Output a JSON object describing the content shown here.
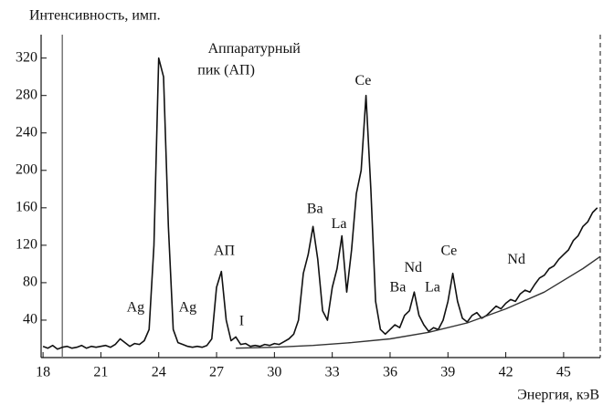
{
  "chart_data": {
    "type": "line",
    "y_label": "Интенсивность, имп.",
    "x_label": "Энергия, кэВ",
    "xlim": [
      17.9,
      46.9
    ],
    "ylim": [
      0,
      345
    ],
    "xticks": [
      18,
      21,
      24,
      27,
      30,
      33,
      36,
      39,
      42,
      45
    ],
    "yticks": [
      40,
      80,
      120,
      160,
      200,
      240,
      280,
      320
    ],
    "vline": 19,
    "series": [
      {
        "color": "#111111",
        "x": [
          18,
          18.25,
          18.5,
          18.75,
          19,
          19.25,
          19.5,
          19.75,
          20,
          20.25,
          20.5,
          20.75,
          21,
          21.25,
          21.5,
          21.75,
          22,
          22.25,
          22.5,
          22.75,
          23,
          23.25,
          23.5,
          23.75,
          24,
          24.25,
          24.5,
          24.75,
          25,
          25.25,
          25.5,
          25.75,
          26,
          26.25,
          26.5,
          26.75,
          27,
          27.25,
          27.5,
          27.75,
          28,
          28.25,
          28.5,
          28.75,
          29,
          29.25,
          29.5,
          29.75,
          30,
          30.25,
          30.5,
          30.75,
          31,
          31.25,
          31.5,
          31.75,
          32,
          32.25,
          32.5,
          32.75,
          33,
          33.25,
          33.5,
          33.75,
          34,
          34.25,
          34.5,
          34.75,
          35,
          35.25,
          35.5,
          35.75,
          36,
          36.25,
          36.5,
          36.75,
          37,
          37.25,
          37.5,
          37.75,
          38,
          38.25,
          38.5,
          38.75,
          39,
          39.25,
          39.5,
          39.75,
          40,
          40.25,
          40.5,
          40.75,
          41,
          41.25,
          41.5,
          41.75,
          42,
          42.25,
          42.5,
          42.75,
          43,
          43.25,
          43.5,
          43.75,
          44,
          44.25,
          44.5,
          44.75,
          45,
          45.25,
          45.5,
          45.75,
          46,
          46.25,
          46.5,
          46.75
        ],
        "values": [
          12,
          10,
          13,
          9,
          11,
          12,
          10,
          11,
          13,
          10,
          12,
          11,
          12,
          13,
          11,
          14,
          20,
          16,
          12,
          15,
          14,
          18,
          30,
          120,
          320,
          300,
          140,
          30,
          16,
          14,
          12,
          11,
          12,
          11,
          13,
          20,
          75,
          92,
          40,
          18,
          22,
          14,
          15,
          12,
          13,
          12,
          14,
          13,
          15,
          14,
          17,
          20,
          25,
          40,
          90,
          110,
          140,
          105,
          50,
          40,
          75,
          95,
          130,
          70,
          115,
          175,
          200,
          280,
          180,
          60,
          30,
          25,
          30,
          35,
          32,
          45,
          50,
          70,
          45,
          35,
          28,
          32,
          30,
          40,
          60,
          90,
          60,
          42,
          38,
          45,
          48,
          42,
          45,
          50,
          55,
          52,
          58,
          62,
          60,
          68,
          72,
          70,
          78,
          85,
          88,
          95,
          98,
          105,
          110,
          115,
          125,
          130,
          140,
          145,
          155,
          160
        ]
      },
      {
        "color": "#333333",
        "x": [
          28,
          30,
          32,
          34,
          36,
          38,
          40,
          42,
          44,
          46,
          46.9
        ],
        "values": [
          10,
          11,
          13,
          16,
          20,
          27,
          37,
          52,
          70,
          95,
          108
        ]
      }
    ],
    "annotations": [
      {
        "text": "Аппаратурный",
        "x": 28.95,
        "y": 329
      },
      {
        "text": "пик (АП)",
        "x": 27.5,
        "y": 306
      },
      {
        "text": "Ce",
        "x": 34.6,
        "y": 295
      },
      {
        "text": "Ba",
        "x": 32.1,
        "y": 158
      },
      {
        "text": "La",
        "x": 33.35,
        "y": 142
      },
      {
        "text": "АП",
        "x": 27.4,
        "y": 113
      },
      {
        "text": "Ag",
        "x": 22.8,
        "y": 53
      },
      {
        "text": "Ag",
        "x": 25.5,
        "y": 53
      },
      {
        "text": "I",
        "x": 28.3,
        "y": 38
      },
      {
        "text": "Ba",
        "x": 36.4,
        "y": 74
      },
      {
        "text": "Nd",
        "x": 37.2,
        "y": 95
      },
      {
        "text": "La",
        "x": 38.2,
        "y": 74
      },
      {
        "text": "Ce",
        "x": 39.05,
        "y": 113
      },
      {
        "text": "Nd",
        "x": 42.55,
        "y": 104
      }
    ]
  }
}
